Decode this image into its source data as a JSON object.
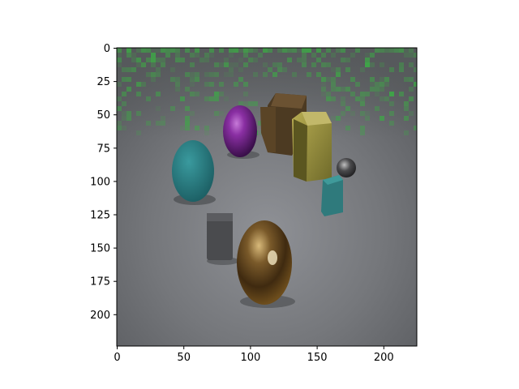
{
  "figure": {
    "x_ticks": [
      "0",
      "50",
      "100",
      "150",
      "200"
    ],
    "y_ticks": [
      "0",
      "25",
      "50",
      "75",
      "100",
      "125",
      "150",
      "175",
      "200"
    ]
  },
  "image": {
    "description_icon": "rendered-3d-scene-image",
    "colors": {
      "background": "#6f7073",
      "floor_light": "#8d8f94",
      "green_noise": "#3ea847"
    }
  }
}
